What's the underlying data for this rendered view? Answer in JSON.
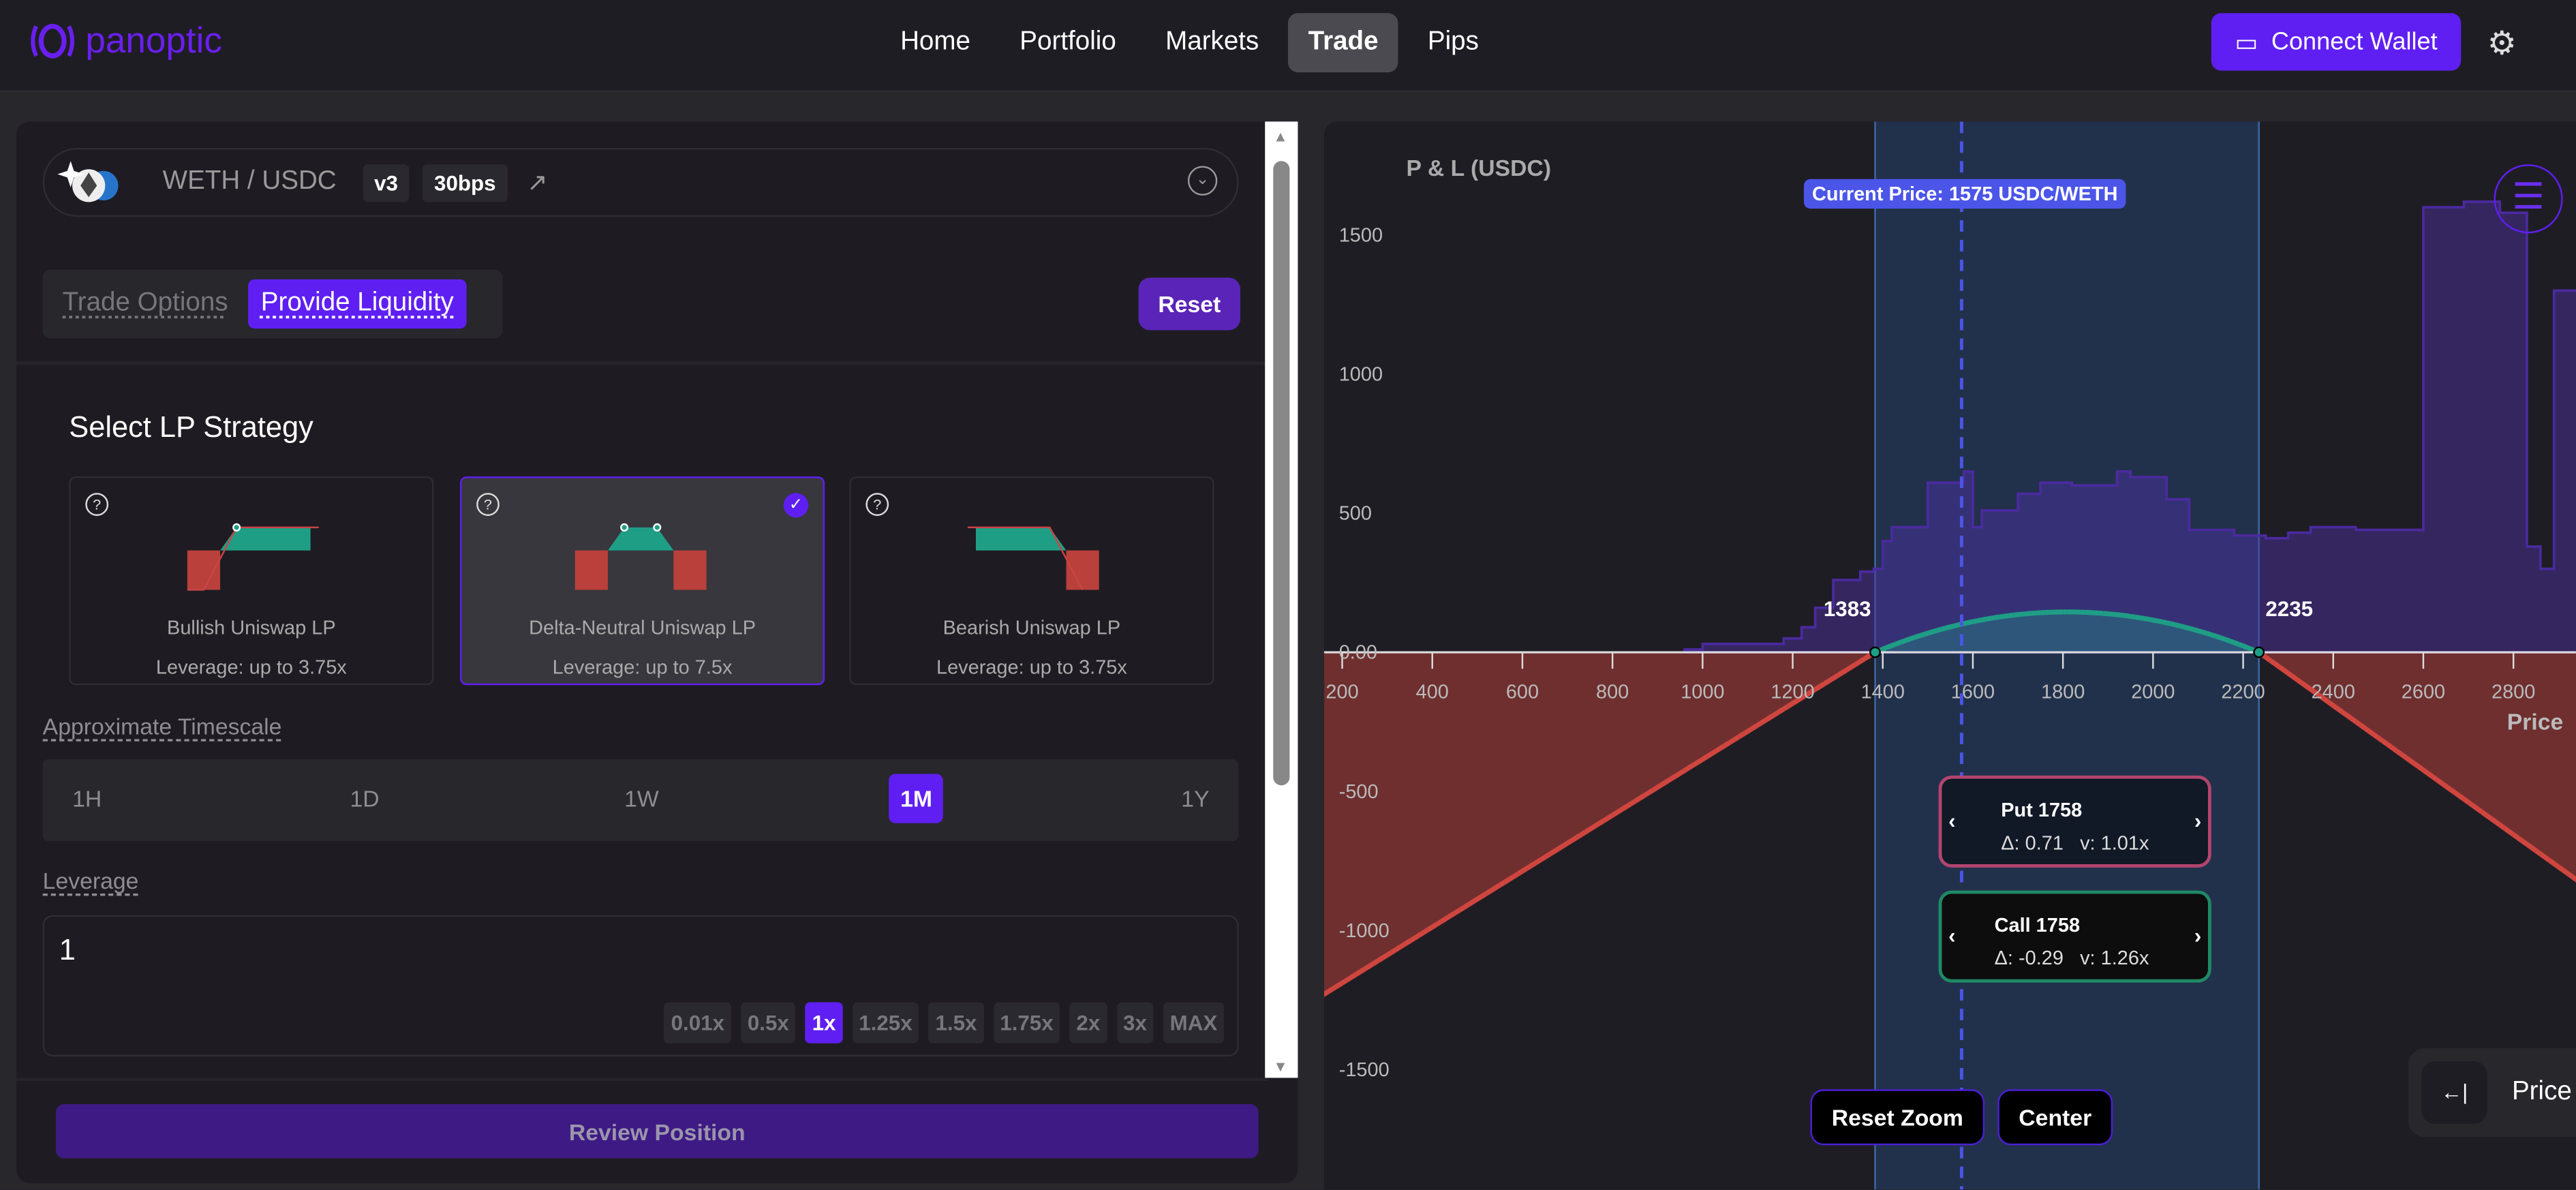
{
  "nav": {
    "brand": "panoptic",
    "links": [
      "Home",
      "Portfolio",
      "Markets",
      "Trade",
      "Pips"
    ],
    "active": "Trade",
    "connect": "Connect Wallet"
  },
  "pair": {
    "name": "WETH / USDC",
    "version": "v3",
    "fee": "30bps"
  },
  "mode": {
    "tabs": [
      "Trade Options",
      "Provide Liquidity"
    ],
    "active": "Provide Liquidity",
    "reset": "Reset"
  },
  "strategy": {
    "title": "Select LP Strategy",
    "cards": [
      {
        "name": "Bullish Uniswap LP",
        "leverage": "Leverage: up to 3.75x",
        "selected": false
      },
      {
        "name": "Delta-Neutral Uniswap LP",
        "leverage": "Leverage: up to 7.5x",
        "selected": true
      },
      {
        "name": "Bearish Uniswap LP",
        "leverage": "Leverage: up to 3.75x",
        "selected": false
      }
    ]
  },
  "timescale": {
    "label": "Approximate Timescale",
    "options": [
      "1H",
      "1D",
      "1W",
      "1M",
      "1Y"
    ],
    "selected": "1M"
  },
  "leverage": {
    "label": "Leverage",
    "value": "1",
    "chips": [
      "0.01x",
      "0.5x",
      "1x",
      "1.25x",
      "1.5x",
      "1.75x",
      "2x",
      "3x",
      "MAX"
    ],
    "selected": "1x"
  },
  "review": "Review Position",
  "colors": {
    "accent": "#5f1ff2",
    "profit": "#1f9e86",
    "loss": "#d0463f",
    "range": "#22314b"
  },
  "chart_data": {
    "type": "line",
    "ylabel": "P & L (USDC)",
    "xlabel": "Price",
    "current_price_label": "Current Price: 1575 USDC/WETH",
    "current_price": 1575,
    "range": [
      1383,
      2235
    ],
    "range_labels": [
      "1383",
      "2235"
    ],
    "xticks": [
      200,
      400,
      600,
      800,
      1000,
      1200,
      1400,
      1600,
      1800,
      2000,
      2200,
      2400,
      2600,
      2800
    ],
    "yticks": [
      {
        "v": 1500,
        "l": "1500"
      },
      {
        "v": 1000,
        "l": "1000"
      },
      {
        "v": 500,
        "l": "500"
      },
      {
        "v": 0,
        "l": "0.00"
      },
      {
        "v": -500,
        "l": "-500"
      },
      {
        "v": -1000,
        "l": "-1000"
      },
      {
        "v": -1500,
        "l": "-1500"
      }
    ],
    "pnl": [
      [
        160,
        -1229
      ],
      [
        1383,
        0
      ],
      [
        1500,
        90
      ],
      [
        1600,
        130
      ],
      [
        1750,
        145
      ],
      [
        1900,
        120
      ],
      [
        2050,
        50
      ],
      [
        2235,
        0
      ],
      [
        2940,
        -815
      ]
    ],
    "liquidity": [
      [
        960,
        10
      ],
      [
        1000,
        30
      ],
      [
        1180,
        50
      ],
      [
        1220,
        90
      ],
      [
        1250,
        160
      ],
      [
        1290,
        260
      ],
      [
        1350,
        290
      ],
      [
        1380,
        300
      ],
      [
        1400,
        400
      ],
      [
        1420,
        450
      ],
      [
        1500,
        610
      ],
      [
        1580,
        650
      ],
      [
        1600,
        450
      ],
      [
        1620,
        510
      ],
      [
        1700,
        570
      ],
      [
        1750,
        610
      ],
      [
        1820,
        600
      ],
      [
        1920,
        650
      ],
      [
        1950,
        630
      ],
      [
        2030,
        550
      ],
      [
        2080,
        440
      ],
      [
        2180,
        420
      ],
      [
        2250,
        410
      ],
      [
        2300,
        430
      ],
      [
        2350,
        450
      ],
      [
        2450,
        440
      ],
      [
        2600,
        1600
      ],
      [
        2690,
        1620
      ],
      [
        2770,
        1580
      ],
      [
        2830,
        380
      ],
      [
        2860,
        300
      ],
      [
        2890,
        1300
      ],
      [
        2960,
        1250
      ],
      [
        3000,
        1100
      ]
    ]
  },
  "tooltips": [
    {
      "title": "Put 1758",
      "delta": "Δ: 0.71",
      "v": "v: 1.01x"
    },
    {
      "title": "Call 1758",
      "delta": "Δ: -0.29",
      "v": "v: 1.26x"
    }
  ],
  "chart_buttons": {
    "reset_zoom": "Reset Zoom",
    "center": "Center",
    "price": "Price"
  }
}
